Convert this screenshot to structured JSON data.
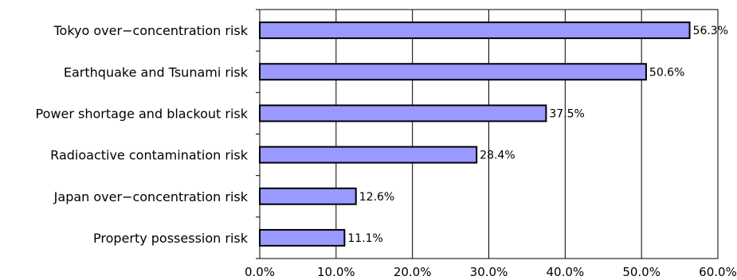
{
  "chart_data": {
    "type": "bar",
    "orientation": "horizontal",
    "categories": [
      "Tokyo over−concentration risk",
      "Earthquake and Tsunami risk",
      "Power shortage and blackout risk",
      "Radioactive contamination risk",
      "Japan over−concentration risk",
      "Property possession risk"
    ],
    "values": [
      56.3,
      50.6,
      37.5,
      28.4,
      12.6,
      11.1
    ],
    "value_labels": [
      "56.3%",
      "50.6%",
      "37.5%",
      "28.4%",
      "12.6%",
      "11.1%"
    ],
    "xlim": [
      0,
      60
    ],
    "x_ticks": [
      0,
      10,
      20,
      30,
      40,
      50,
      60
    ],
    "x_tick_labels": [
      "0.0%",
      "10.0%",
      "20.0%",
      "30.0%",
      "40.0%",
      "50.0%",
      "60.0%"
    ],
    "grid": "vertical",
    "legend": "none",
    "colors": {
      "bar_fill": "#9999ff",
      "bar_stroke": "#000000",
      "grid": "#000000"
    }
  }
}
